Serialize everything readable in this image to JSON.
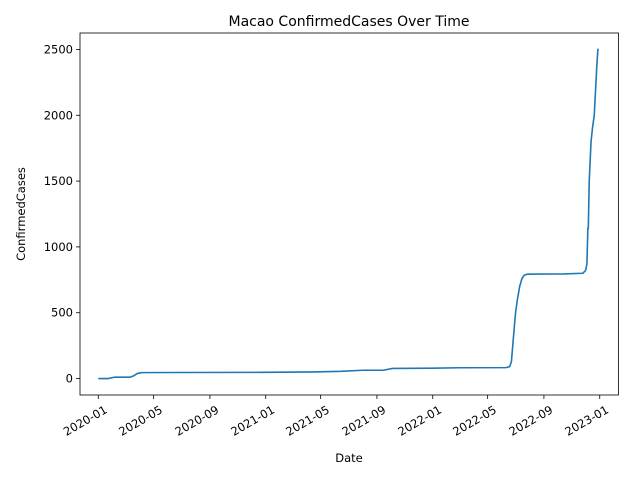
{
  "chart_data": {
    "type": "line",
    "title": "Macao  ConfirmedCases Over Time",
    "xlabel": "Date",
    "ylabel": "ConfirmedCases",
    "xlim": [
      "2019-11-22",
      "2023-02-11"
    ],
    "ylim": [
      -125,
      2625
    ],
    "grid": false,
    "line_color": "#1f77b4",
    "x_ticks": [
      "2020-01",
      "2020-05",
      "2020-09",
      "2021-01",
      "2021-05",
      "2021-09",
      "2022-01",
      "2022-05",
      "2022-09",
      "2023-01"
    ],
    "y_ticks": [
      0,
      500,
      1000,
      1500,
      2000,
      2500
    ],
    "series": [
      {
        "x": [
          "2020-01-01",
          "2020-01-22",
          "2020-02-01",
          "2020-02-05",
          "2020-03-10",
          "2020-03-18",
          "2020-03-26",
          "2020-04-05",
          "2020-06-30",
          "2021-01-01",
          "2021-04-15",
          "2021-06-15",
          "2021-08-01",
          "2021-09-15",
          "2021-10-05",
          "2022-01-01",
          "2022-03-01",
          "2022-06-10",
          "2022-06-18",
          "2022-06-22",
          "2022-06-26",
          "2022-07-01",
          "2022-07-05",
          "2022-07-10",
          "2022-07-15",
          "2022-07-20",
          "2022-07-27",
          "2022-08-15",
          "2022-10-15",
          "2022-11-25",
          "2022-12-01",
          "2022-12-04",
          "2022-12-06",
          "2022-12-07",
          "2022-12-09",
          "2022-12-11",
          "2022-12-13",
          "2022-12-16",
          "2022-12-20",
          "2022-12-23",
          "2022-12-26",
          "2022-12-28",
          "2022-12-30"
        ],
        "y": [
          0,
          0,
          7,
          10,
          10,
          20,
          38,
          45,
          46,
          47,
          50,
          55,
          63,
          63,
          77,
          79,
          82,
          83,
          90,
          130,
          300,
          500,
          600,
          700,
          760,
          785,
          793,
          794,
          795,
          800,
          820,
          870,
          1140,
          1140,
          1500,
          1650,
          1800,
          1900,
          2000,
          2200,
          2400,
          2500,
          2500
        ]
      }
    ]
  }
}
